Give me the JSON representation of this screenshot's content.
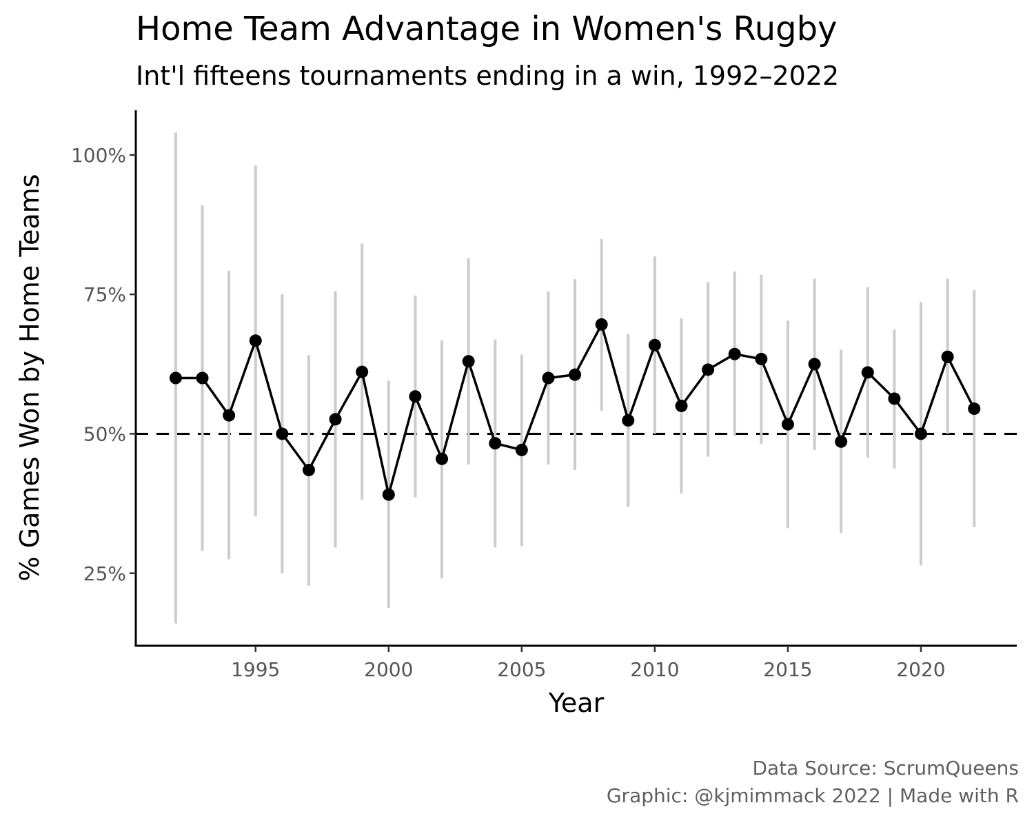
{
  "chart_data": {
    "type": "line",
    "title": "Home Team Advantage in Women's Rugby",
    "subtitle": "Int'l fifteens tournaments ending in a win, 1992–2022",
    "xlabel": "Year",
    "ylabel": "% Games Won by Home Teams",
    "caption_line1": "Data Source: ScrumQueens",
    "caption_line2": "Graphic: @kjmimmack 2022 | Made with R",
    "xlim": [
      1990.5,
      2023.6
    ],
    "ylim": [
      0.12,
      1.08
    ],
    "x_ticks": [
      1995,
      2000,
      2005,
      2010,
      2015,
      2020
    ],
    "x_tick_labels": [
      "1995",
      "2000",
      "2005",
      "2010",
      "2015",
      "2020"
    ],
    "y_ticks": [
      0.25,
      0.5,
      0.75,
      1.0
    ],
    "y_tick_labels": [
      "25%",
      "50%",
      "75%",
      "100%"
    ],
    "reference_line": 0.5,
    "grid": false,
    "colors": {
      "line": "#000000",
      "errorbar": "#cccccc",
      "reference": "#000000"
    },
    "points": [
      {
        "x": 1992,
        "y": 0.6,
        "low": 0.16,
        "high": 1.04
      },
      {
        "x": 1993,
        "y": 0.6,
        "low": 0.29,
        "high": 0.91
      },
      {
        "x": 1994,
        "y": 0.533,
        "low": 0.275,
        "high": 0.792
      },
      {
        "x": 1995,
        "y": 0.667,
        "low": 0.352,
        "high": 0.981
      },
      {
        "x": 1996,
        "y": 0.5,
        "low": 0.25,
        "high": 0.75
      },
      {
        "x": 1997,
        "y": 0.435,
        "low": 0.228,
        "high": 0.641
      },
      {
        "x": 1998,
        "y": 0.526,
        "low": 0.296,
        "high": 0.756
      },
      {
        "x": 1999,
        "y": 0.611,
        "low": 0.382,
        "high": 0.841
      },
      {
        "x": 2000,
        "y": 0.391,
        "low": 0.188,
        "high": 0.595
      },
      {
        "x": 2001,
        "y": 0.567,
        "low": 0.386,
        "high": 0.748
      },
      {
        "x": 2002,
        "y": 0.455,
        "low": 0.241,
        "high": 0.668
      },
      {
        "x": 2003,
        "y": 0.63,
        "low": 0.445,
        "high": 0.815
      },
      {
        "x": 2004,
        "y": 0.483,
        "low": 0.296,
        "high": 0.669
      },
      {
        "x": 2005,
        "y": 0.471,
        "low": 0.299,
        "high": 0.642
      },
      {
        "x": 2006,
        "y": 0.6,
        "low": 0.445,
        "high": 0.755
      },
      {
        "x": 2007,
        "y": 0.606,
        "low": 0.435,
        "high": 0.777
      },
      {
        "x": 2008,
        "y": 0.696,
        "low": 0.541,
        "high": 0.849
      },
      {
        "x": 2009,
        "y": 0.524,
        "low": 0.369,
        "high": 0.679
      },
      {
        "x": 2010,
        "y": 0.659,
        "low": 0.5,
        "high": 0.818
      },
      {
        "x": 2011,
        "y": 0.55,
        "low": 0.393,
        "high": 0.707
      },
      {
        "x": 2012,
        "y": 0.615,
        "low": 0.459,
        "high": 0.772
      },
      {
        "x": 2013,
        "y": 0.643,
        "low": 0.496,
        "high": 0.791
      },
      {
        "x": 2014,
        "y": 0.634,
        "low": 0.482,
        "high": 0.785
      },
      {
        "x": 2015,
        "y": 0.517,
        "low": 0.331,
        "high": 0.703
      },
      {
        "x": 2016,
        "y": 0.625,
        "low": 0.471,
        "high": 0.778
      },
      {
        "x": 2017,
        "y": 0.486,
        "low": 0.322,
        "high": 0.651
      },
      {
        "x": 2018,
        "y": 0.61,
        "low": 0.457,
        "high": 0.763
      },
      {
        "x": 2019,
        "y": 0.563,
        "low": 0.438,
        "high": 0.687
      },
      {
        "x": 2020,
        "y": 0.5,
        "low": 0.264,
        "high": 0.736
      },
      {
        "x": 2021,
        "y": 0.638,
        "low": 0.5,
        "high": 0.778
      },
      {
        "x": 2022,
        "y": 0.545,
        "low": 0.333,
        "high": 0.758
      }
    ]
  }
}
